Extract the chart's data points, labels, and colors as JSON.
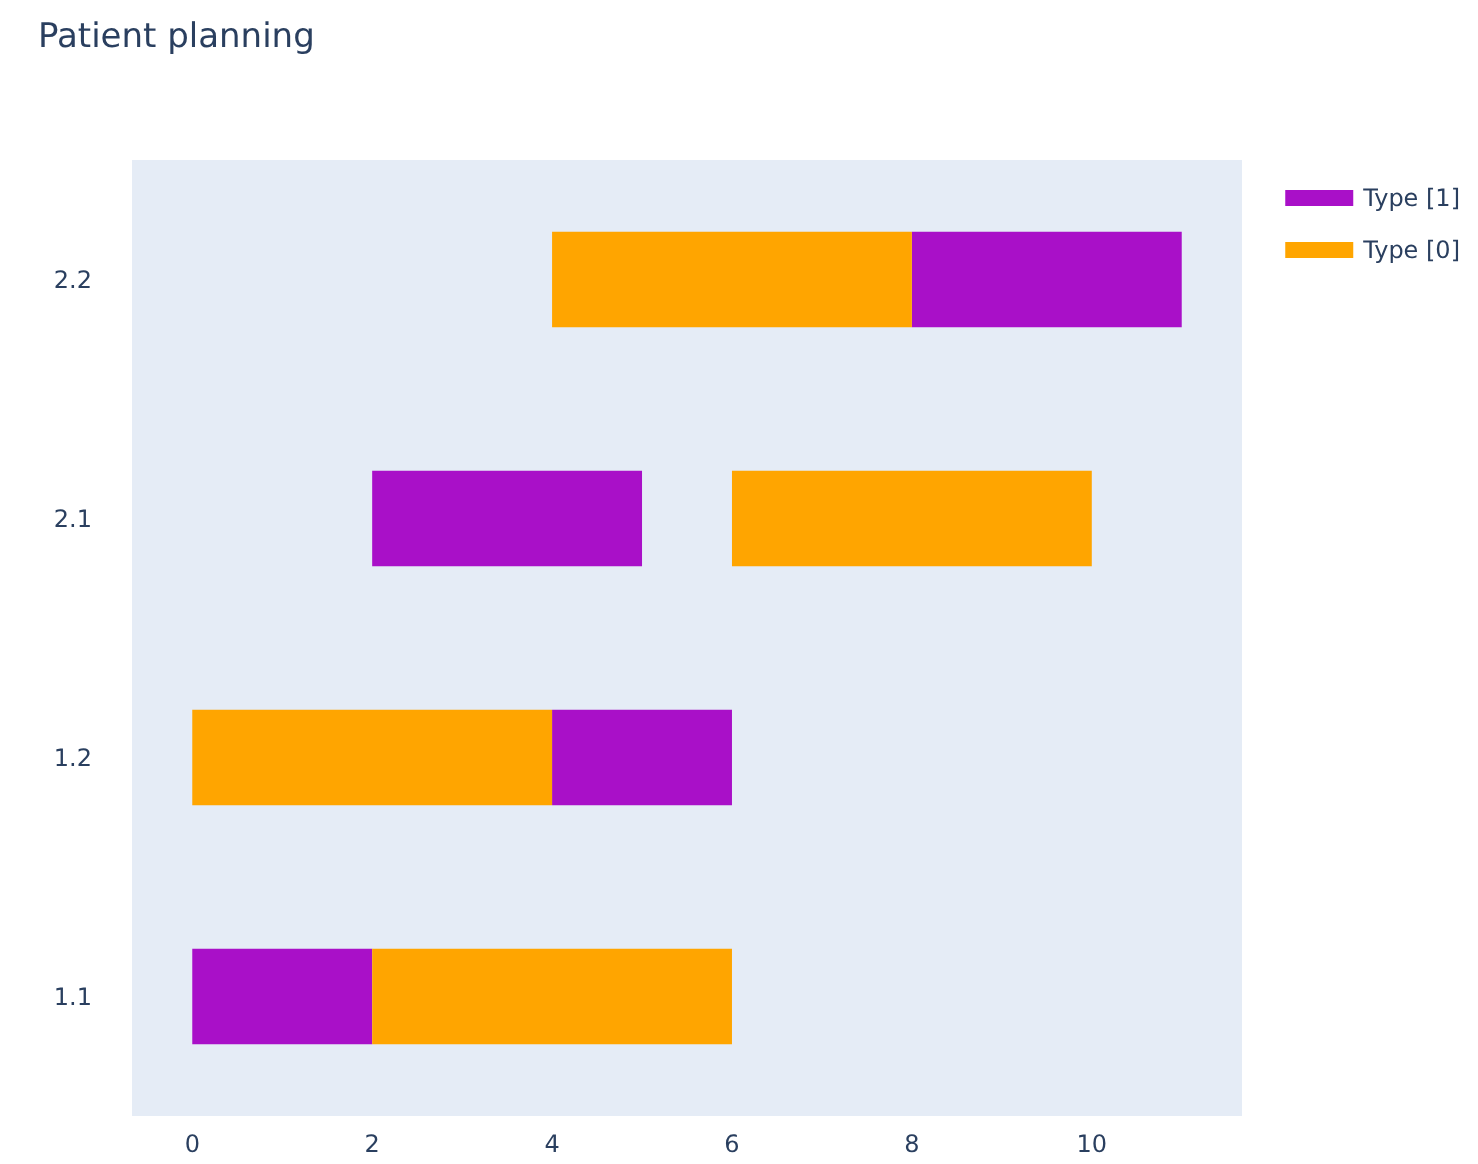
{
  "chart_data": {
    "type": "bar",
    "title": "Patient planning",
    "orientation": "horizontal",
    "categories": [
      "2.2",
      "2.1",
      "1.2",
      "1.1"
    ],
    "series": [
      {
        "name": "Type [1]",
        "color": "#a910c8",
        "values": [
          3,
          3,
          2,
          2
        ],
        "base": [
          8,
          2,
          4,
          0
        ]
      },
      {
        "name": "Type [0]",
        "color": "#ffa500",
        "values": [
          4,
          4,
          4,
          4
        ],
        "base": [
          4,
          6,
          0,
          2
        ]
      }
    ],
    "xlim": [
      -0.67,
      11.67
    ],
    "xticks": [
      0,
      2,
      4,
      6,
      8,
      10
    ],
    "grid": false,
    "legend": "top right"
  }
}
